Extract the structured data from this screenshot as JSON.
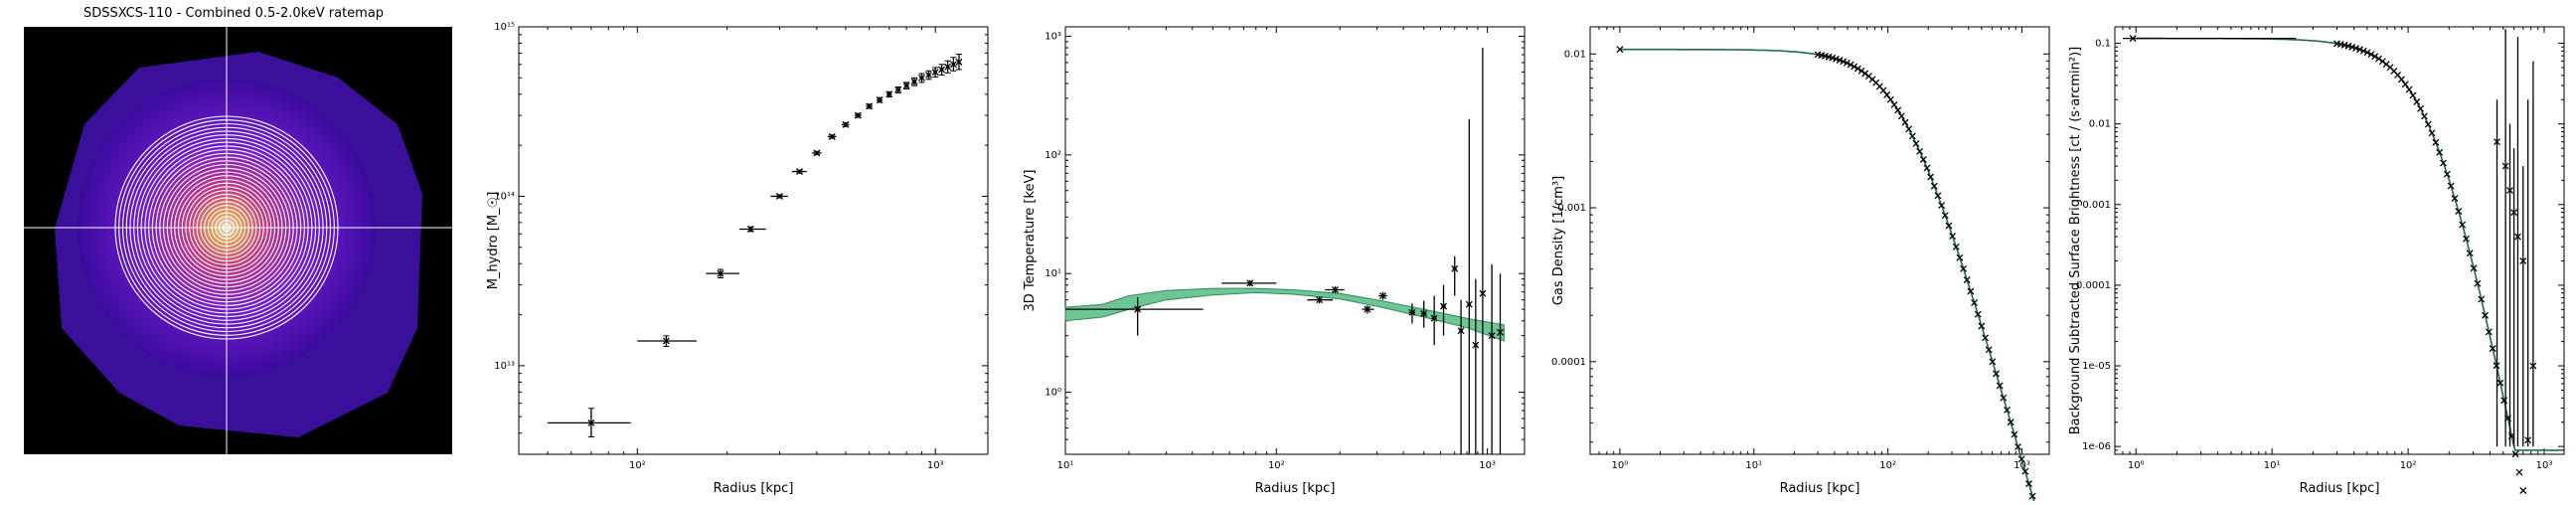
{
  "figure_title": "SDSSXCS-110 - Combined 0.5-2.0keV ratemap",
  "colors": {
    "band": "#2e8b57",
    "band_fill": "#3cb371",
    "line": "#1e6b45",
    "errbar": "#000000",
    "crosshair": "#ffffff"
  },
  "chart_data": [
    {
      "type": "image",
      "title": "SDSSXCS-110 - Combined 0.5-2.0keV ratemap",
      "annuli_count": 30,
      "crosshair": true
    },
    {
      "type": "scatter",
      "xlabel": "Radius [kpc]",
      "ylabel": "M_hydro [M_☉]",
      "xscale": "log",
      "yscale": "log",
      "xlim": [
        40,
        1500
      ],
      "ylim": [
        3000000000000.0,
        1000000000000000.0
      ],
      "xticks": [
        {
          "v": 100,
          "label": "10²"
        },
        {
          "v": 1000,
          "label": "10³"
        }
      ],
      "yticks": [
        {
          "v": 10000000000000.0,
          "label": "10¹³"
        },
        {
          "v": 100000000000000.0,
          "label": "10¹⁴"
        },
        {
          "v": 1000000000000000.0,
          "label": "10¹⁵"
        }
      ],
      "points": [
        {
          "x": 70,
          "y": 4600000000000.0,
          "xerr": [
            50,
            95
          ],
          "yerr": [
            3800000000000.0,
            5600000000000.0
          ]
        },
        {
          "x": 125,
          "y": 14000000000000.0,
          "xerr": [
            100,
            158
          ],
          "yerr": [
            13000000000000.0,
            15000000000000.0
          ]
        },
        {
          "x": 190,
          "y": 35000000000000.0,
          "xerr": [
            170,
            220
          ],
          "yerr": [
            33000000000000.0,
            37000000000000.0
          ]
        },
        {
          "x": 240,
          "y": 64000000000000.0,
          "xerr": [
            220,
            270
          ],
          "yerr": [
            62000000000000.0,
            66000000000000.0
          ]
        },
        {
          "x": 300,
          "y": 100000000000000.0,
          "xerr": [
            280,
            320
          ],
          "yerr": [
            98000000000000.0,
            102000000000000.0
          ]
        },
        {
          "x": 350,
          "y": 140000000000000.0,
          "xerr": [
            330,
            370
          ],
          "yerr": [
            137000000000000.0,
            143000000000000.0
          ]
        },
        {
          "x": 400,
          "y": 180000000000000.0,
          "xerr": [
            385,
            415
          ],
          "yerr": [
            176000000000000.0,
            184000000000000.0
          ]
        },
        {
          "x": 450,
          "y": 225000000000000.0,
          "xerr": [
            435,
            465
          ],
          "yerr": [
            220000000000000.0,
            230000000000000.0
          ]
        },
        {
          "x": 500,
          "y": 265000000000000.0,
          "xerr": [
            485,
            515
          ],
          "yerr": [
            258000000000000.0,
            272000000000000.0
          ]
        },
        {
          "x": 550,
          "y": 300000000000000.0,
          "xerr": [
            535,
            565
          ],
          "yerr": [
            292000000000000.0,
            308000000000000.0
          ]
        },
        {
          "x": 600,
          "y": 340000000000000.0,
          "xerr": [
            585,
            615
          ],
          "yerr": [
            330000000000000.0,
            350000000000000.0
          ]
        },
        {
          "x": 650,
          "y": 370000000000000.0,
          "xerr": [
            635,
            665
          ],
          "yerr": [
            358000000000000.0,
            382000000000000.0
          ]
        },
        {
          "x": 700,
          "y": 400000000000000.0,
          "xerr": [
            685,
            715
          ],
          "yerr": [
            386000000000000.0,
            414000000000000.0
          ]
        },
        {
          "x": 750,
          "y": 425000000000000.0,
          "xerr": [
            735,
            765
          ],
          "yerr": [
            408000000000000.0,
            442000000000000.0
          ]
        },
        {
          "x": 800,
          "y": 450000000000000.0,
          "xerr": [
            785,
            815
          ],
          "yerr": [
            430000000000000.0,
            470000000000000.0
          ]
        },
        {
          "x": 850,
          "y": 475000000000000.0,
          "xerr": [
            835,
            865
          ],
          "yerr": [
            450000000000000.0,
            500000000000000.0
          ]
        },
        {
          "x": 900,
          "y": 500000000000000.0,
          "xerr": [
            885,
            915
          ],
          "yerr": [
            470000000000000.0,
            530000000000000.0
          ]
        },
        {
          "x": 950,
          "y": 520000000000000.0,
          "xerr": [
            935,
            965
          ],
          "yerr": [
            490000000000000.0,
            550000000000000.0
          ]
        },
        {
          "x": 1000,
          "y": 540000000000000.0,
          "xerr": [
            985,
            1015
          ],
          "yerr": [
            505000000000000.0,
            575000000000000.0
          ]
        },
        {
          "x": 1050,
          "y": 560000000000000.0,
          "xerr": [
            1035,
            1065
          ],
          "yerr": [
            520000000000000.0,
            600000000000000.0
          ]
        },
        {
          "x": 1100,
          "y": 580000000000000.0,
          "xerr": [
            1085,
            1115
          ],
          "yerr": [
            535000000000000.0,
            630000000000000.0
          ]
        },
        {
          "x": 1150,
          "y": 600000000000000.0,
          "xerr": [
            1135,
            1165
          ],
          "yerr": [
            550000000000000.0,
            660000000000000.0
          ]
        },
        {
          "x": 1200,
          "y": 620000000000000.0,
          "xerr": [
            1185,
            1215
          ],
          "yerr": [
            560000000000000.0,
            690000000000000.0
          ]
        }
      ]
    },
    {
      "type": "scatter",
      "xlabel": "Radius [kpc]",
      "ylabel": "3D Temperature [keV]",
      "xscale": "log",
      "yscale": "log",
      "xlim": [
        10,
        1500
      ],
      "ylim": [
        0.3,
        1200
      ],
      "xticks": [
        {
          "v": 10,
          "label": "10¹"
        },
        {
          "v": 100,
          "label": "10²"
        },
        {
          "v": 1000,
          "label": "10³"
        }
      ],
      "yticks": [
        {
          "v": 1,
          "label": "10⁰"
        },
        {
          "v": 10,
          "label": "10¹"
        },
        {
          "v": 100,
          "label": "10²"
        },
        {
          "v": 1000,
          "label": "10³"
        }
      ],
      "band": {
        "x": [
          10,
          15,
          20,
          30,
          50,
          80,
          120,
          200,
          300,
          500,
          800,
          1200
        ],
        "low": [
          4.0,
          4.3,
          5.0,
          6.0,
          6.6,
          6.9,
          6.7,
          6.1,
          5.3,
          4.3,
          3.5,
          2.7
        ],
        "high": [
          5.2,
          5.5,
          6.5,
          7.2,
          7.5,
          7.5,
          7.3,
          6.8,
          6.0,
          5.0,
          4.2,
          3.7
        ]
      },
      "points": [
        {
          "x": 22,
          "y": 5.0,
          "xerr": [
            10,
            45
          ],
          "yerr": [
            3.0,
            6.3
          ]
        },
        {
          "x": 75,
          "y": 8.3,
          "xerr": [
            55,
            100
          ],
          "yerr": [
            7.8,
            8.8
          ]
        },
        {
          "x": 190,
          "y": 7.3,
          "xerr": [
            170,
            210
          ],
          "yerr": [
            6.8,
            7.8
          ]
        },
        {
          "x": 160,
          "y": 6.0,
          "xerr": [
            140,
            185
          ],
          "yerr": [
            5.6,
            6.4
          ]
        },
        {
          "x": 270,
          "y": 5.0,
          "xerr": [
            255,
            290
          ],
          "yerr": [
            4.6,
            5.4
          ]
        },
        {
          "x": 320,
          "y": 6.5,
          "xerr": [
            305,
            335
          ],
          "yerr": [
            6.0,
            7.0
          ]
        },
        {
          "x": 440,
          "y": 4.7,
          "xerr": [
            425,
            455
          ],
          "yerr": [
            3.8,
            5.6
          ]
        },
        {
          "x": 500,
          "y": 4.6,
          "xerr": [
            485,
            515
          ],
          "yerr": [
            3.5,
            5.9
          ]
        },
        {
          "x": 560,
          "y": 4.2,
          "xerr": [
            545,
            575
          ],
          "yerr": [
            2.5,
            6.5
          ]
        },
        {
          "x": 620,
          "y": 5.3,
          "xerr": [
            605,
            635
          ],
          "yerr": [
            3.0,
            8.0
          ]
        },
        {
          "x": 700,
          "y": 11.0,
          "xerr": [
            685,
            715
          ],
          "yerr": [
            6.5,
            14.0
          ]
        },
        {
          "x": 750,
          "y": 3.3,
          "xerr": [
            735,
            765
          ],
          "yerr": [
            0.3,
            6.0
          ]
        },
        {
          "x": 820,
          "y": 5.5,
          "xerr": [
            805,
            835
          ],
          "yerr": [
            0.3,
            200
          ]
        },
        {
          "x": 880,
          "y": 2.5,
          "xerr": [
            865,
            895
          ],
          "yerr": [
            0.3,
            9.0
          ]
        },
        {
          "x": 950,
          "y": 6.8,
          "xerr": [
            935,
            965
          ],
          "yerr": [
            0.3,
            800
          ]
        },
        {
          "x": 1050,
          "y": 3.0,
          "xerr": [
            1035,
            1065
          ],
          "yerr": [
            0.3,
            12.0
          ]
        },
        {
          "x": 1150,
          "y": 3.2,
          "xerr": [
            1135,
            1165
          ],
          "yerr": [
            0.3,
            10.0
          ]
        }
      ]
    },
    {
      "type": "line",
      "xlabel": "Radius [kpc]",
      "ylabel": "Gas Density",
      "ylabel_unit": "1/cm³",
      "xscale": "log",
      "yscale": "log",
      "xlim": [
        0.6,
        1600
      ],
      "ylim": [
        2.5e-05,
        0.015
      ],
      "xticks": [
        {
          "v": 1,
          "label": "10⁰"
        },
        {
          "v": 10,
          "label": "10¹"
        },
        {
          "v": 100,
          "label": "10²"
        },
        {
          "v": 1000,
          "label": "10³"
        }
      ],
      "yticks": [
        {
          "v": 0.01,
          "label": "0.01"
        },
        {
          "v": 0.001,
          "label": "0.001"
        },
        {
          "v": 0.0001,
          "label": "0.0001"
        }
      ],
      "model": {
        "n0": 0.0107,
        "rc": 130,
        "beta": 1.0
      },
      "marker_x_range": [
        30,
        1200
      ],
      "marker_count": 60
    },
    {
      "type": "line",
      "xlabel": "Radius [kpc]",
      "ylabel": "Background Subtracted Surface Brightness",
      "ylabel_unit": "ct / (s·arcmin²)",
      "xscale": "log",
      "yscale": "log",
      "xlim": [
        0.7,
        1400
      ],
      "ylim": [
        8e-07,
        0.16
      ],
      "xticks": [
        {
          "v": 1,
          "label": "10⁰"
        },
        {
          "v": 10,
          "label": "10¹"
        },
        {
          "v": 100,
          "label": "10²"
        },
        {
          "v": 1000,
          "label": "10³"
        }
      ],
      "yticks": [
        {
          "v": 0.1,
          "label": "0.1"
        },
        {
          "v": 0.01,
          "label": "0.01"
        },
        {
          "v": 0.001,
          "label": "0.001"
        },
        {
          "v": 0.0001,
          "label": "0.0001"
        },
        {
          "v": 1e-05,
          "label": "1e-05"
        },
        {
          "v": 1e-06,
          "label": "1e-06"
        }
      ],
      "model": {
        "s0": 0.115,
        "rc": 160,
        "beta": 1.6
      },
      "first_point": {
        "x": 0.95,
        "y": 0.115,
        "xerr": [
          0.8,
          15
        ]
      },
      "marker_x_range": [
        30,
        700
      ],
      "marker_count": 50,
      "noisy_points": [
        {
          "x": 450,
          "y": 0.006,
          "yerr": [
            1e-06,
            0.02
          ]
        },
        {
          "x": 520,
          "y": 0.003,
          "yerr": [
            1e-06,
            0.15
          ]
        },
        {
          "x": 560,
          "y": 0.0015,
          "yerr": [
            1e-06,
            0.01
          ]
        },
        {
          "x": 600,
          "y": 0.0008,
          "yerr": [
            1e-06,
            0.005
          ]
        },
        {
          "x": 640,
          "y": 0.0004,
          "yerr": [
            1e-06,
            0.12
          ]
        },
        {
          "x": 700,
          "y": 0.0002,
          "yerr": [
            1e-06,
            0.003
          ]
        },
        {
          "x": 760,
          "y": 1.2e-06,
          "yerr": [
            1e-06,
            0.02
          ]
        },
        {
          "x": 830,
          "y": 1e-05,
          "yerr": [
            1e-06,
            0.06
          ]
        }
      ]
    }
  ]
}
